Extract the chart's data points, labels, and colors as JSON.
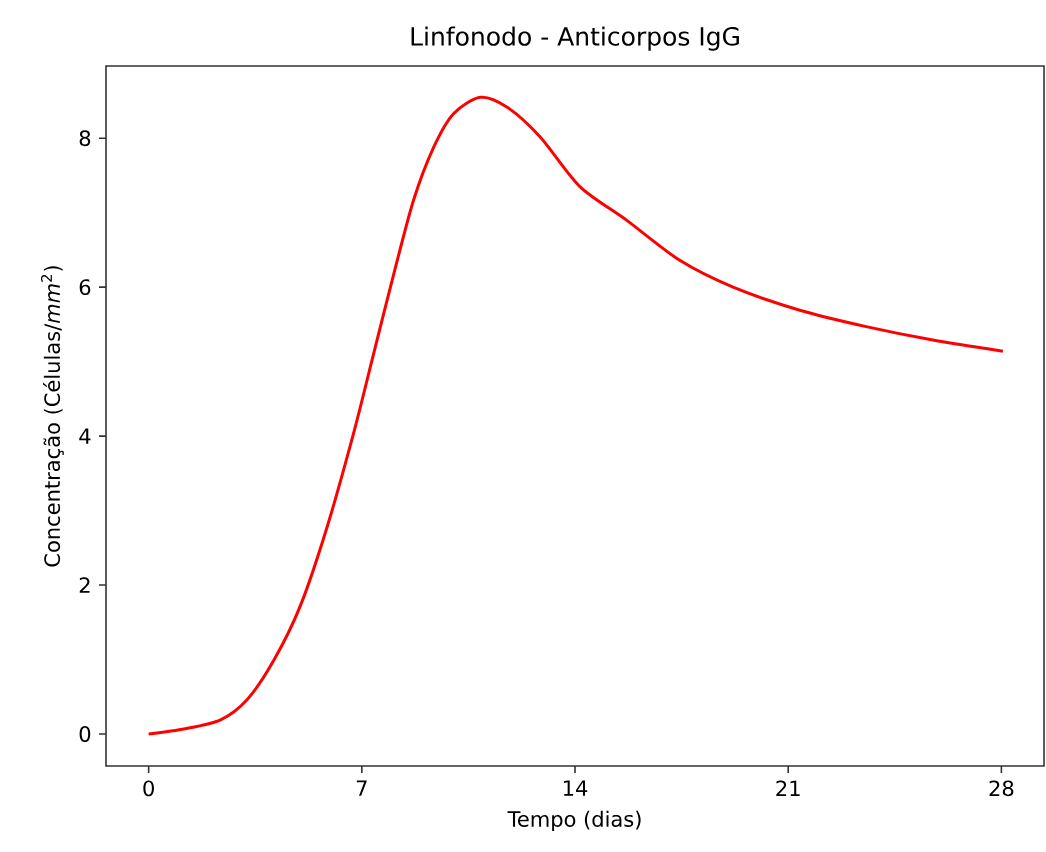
{
  "chart_data": {
    "type": "line",
    "title": "Linfonodo - Anticorpos IgG",
    "xlabel": "Tempo (dias)",
    "ylabel": "Concentração (Células/*mm*$^{2}$)",
    "series": [
      {
        "color": "#ff0000",
        "x": [
          0,
          1.2,
          2.36,
          3.23,
          4.11,
          4.98,
          5.86,
          6.73,
          7.39,
          8.05,
          8.7,
          9.36,
          10.01,
          10.89,
          11.76,
          12.85,
          14.16,
          15.69,
          17.44,
          19.19,
          21.38,
          23.56,
          25.75,
          28.05
        ],
        "values": [
          0,
          0.07,
          0.19,
          0.46,
          0.99,
          1.72,
          2.78,
          4.04,
          5.11,
          6.18,
          7.17,
          7.88,
          8.33,
          8.55,
          8.42,
          8.02,
          7.35,
          6.9,
          6.36,
          6.0,
          5.69,
          5.47,
          5.29,
          5.14
        ]
      }
    ],
    "xlim": [
      -1.4,
      29.4
    ],
    "ylim": [
      -0.43,
      8.97
    ],
    "xticks": [
      0,
      7,
      14,
      21,
      28
    ],
    "yticks": [
      0,
      2,
      4,
      6,
      8
    ],
    "grid": false,
    "marker": "none",
    "line_style": "solid"
  }
}
